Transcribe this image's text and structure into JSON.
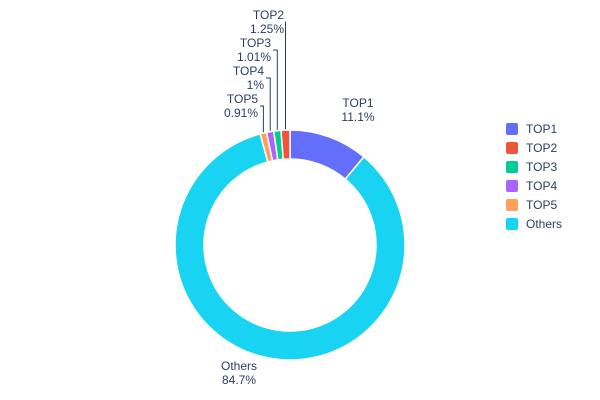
{
  "figure": {
    "background": "#ffffff",
    "text_color": "#2a3f5f"
  },
  "chart_data": {
    "type": "pie",
    "subtype": "donut",
    "hole": 0.75,
    "title": "",
    "labels": [
      "TOP1",
      "TOP2",
      "TOP3",
      "TOP4",
      "TOP5",
      "Others"
    ],
    "values": [
      11.1,
      1.25,
      1.01,
      1.0,
      0.91,
      84.7
    ],
    "percent_labels": [
      "11.1%",
      "1.25%",
      "1.01%",
      "1%",
      "0.91%",
      "84.7%"
    ],
    "colors": [
      "#636EFA",
      "#EF553B",
      "#00CC96",
      "#AB63FA",
      "#FFA15A",
      "#19D3F3"
    ],
    "text_color": "#2a3f5f",
    "legend": {
      "position": "right",
      "entries": [
        "TOP1",
        "TOP2",
        "TOP3",
        "TOP4",
        "TOP5",
        "Others"
      ]
    },
    "draw_order_clockwise_from_top": [
      0,
      5,
      4,
      3,
      2,
      1
    ],
    "outside_labels": [
      {
        "slice": 0,
        "text": "TOP1",
        "percent": "11.1%",
        "leader_line": false
      },
      {
        "slice": 1,
        "text": "TOP2",
        "percent": "1.25%",
        "leader_line": true
      },
      {
        "slice": 2,
        "text": "TOP3",
        "percent": "1.01%",
        "leader_line": true
      },
      {
        "slice": 3,
        "text": "TOP4",
        "percent": "1%",
        "leader_line": true
      },
      {
        "slice": 4,
        "text": "TOP5",
        "percent": "0.91%",
        "leader_line": true
      },
      {
        "slice": 5,
        "text": "Others",
        "percent": "84.7%",
        "leader_line": false
      }
    ]
  }
}
